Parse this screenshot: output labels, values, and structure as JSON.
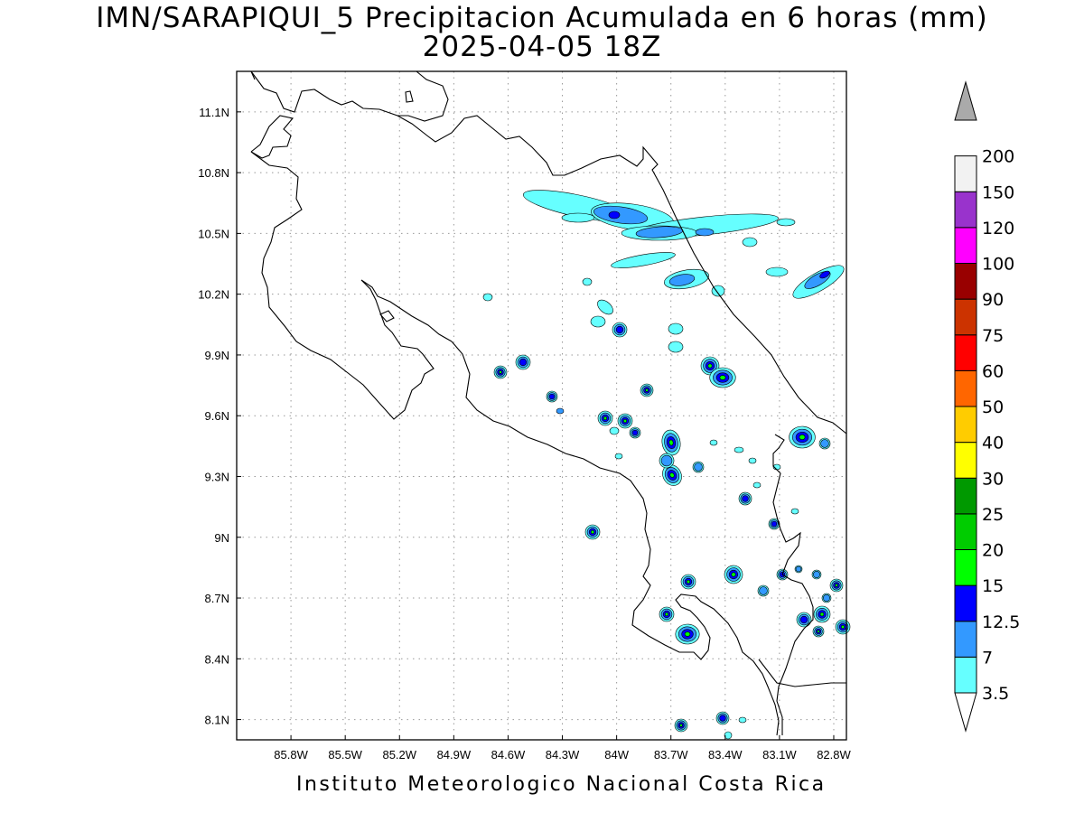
{
  "title": {
    "line1": "IMN/SARAPIQUI_5 Precipitacion Acumulada en 6 horas (mm)",
    "line2": "2025-04-05 18Z"
  },
  "footer": "Instituto Meteorologico Nacional Costa Rica",
  "map": {
    "lon_range": [
      -86.1,
      -82.73
    ],
    "lat_range": [
      8.0,
      11.3
    ],
    "lon_ticks": [
      {
        "value": -85.8,
        "label": "85.8W"
      },
      {
        "value": -85.5,
        "label": "85.5W"
      },
      {
        "value": -85.2,
        "label": "85.2W"
      },
      {
        "value": -84.9,
        "label": "84.9W"
      },
      {
        "value": -84.6,
        "label": "84.6W"
      },
      {
        "value": -84.3,
        "label": "84.3W"
      },
      {
        "value": -84.0,
        "label": "84W"
      },
      {
        "value": -83.7,
        "label": "83.7W"
      },
      {
        "value": -83.4,
        "label": "83.4W"
      },
      {
        "value": -83.1,
        "label": "83.1W"
      },
      {
        "value": -82.8,
        "label": "82.8W"
      }
    ],
    "lat_ticks": [
      {
        "value": 11.1,
        "label": "11.1N"
      },
      {
        "value": 10.8,
        "label": "10.8N"
      },
      {
        "value": 10.5,
        "label": "10.5N"
      },
      {
        "value": 10.2,
        "label": "10.2N"
      },
      {
        "value": 9.9,
        "label": "9.9N"
      },
      {
        "value": 9.6,
        "label": "9.6N"
      },
      {
        "value": 9.3,
        "label": "9.3N"
      },
      {
        "value": 9.0,
        "label": "9N"
      },
      {
        "value": 8.7,
        "label": "8.7N"
      },
      {
        "value": 8.4,
        "label": "8.4N"
      },
      {
        "value": 8.1,
        "label": "8.1N"
      }
    ],
    "grid": "dotted"
  },
  "colorbar": {
    "levels": [
      {
        "label": "3.5",
        "color": "#66ffff"
      },
      {
        "label": "7",
        "color": "#3399ff"
      },
      {
        "label": "12.5",
        "color": "#0000ff"
      },
      {
        "label": "15",
        "color": "#00ff00"
      },
      {
        "label": "20",
        "color": "#00cc00"
      },
      {
        "label": "25",
        "color": "#009900"
      },
      {
        "label": "30",
        "color": "#ffff00"
      },
      {
        "label": "40",
        "color": "#ffcc00"
      },
      {
        "label": "50",
        "color": "#ff6600"
      },
      {
        "label": "60",
        "color": "#ff0000"
      },
      {
        "label": "75",
        "color": "#cc3300"
      },
      {
        "label": "90",
        "color": "#990000"
      },
      {
        "label": "100",
        "color": "#ff00ff"
      },
      {
        "label": "120",
        "color": "#9933cc"
      },
      {
        "label": "150",
        "color": "#f2f2f2"
      },
      {
        "label": "200",
        "color": "#aaaaaa"
      }
    ],
    "below_color": "#ffffff"
  }
}
